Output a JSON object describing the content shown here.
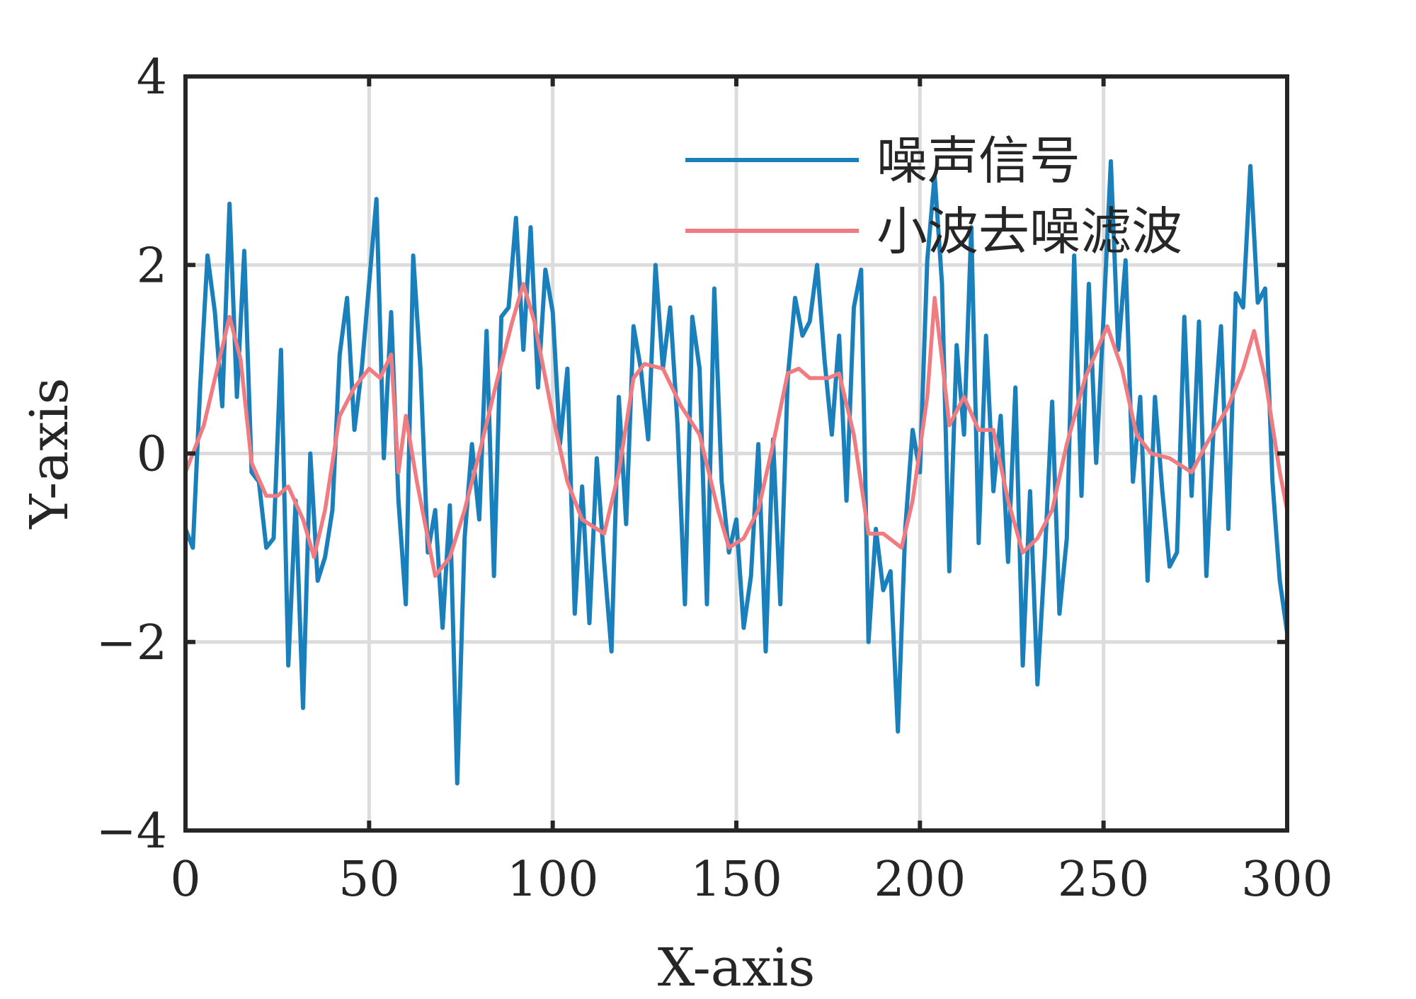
{
  "chart_data": {
    "type": "line",
    "title": "",
    "xlabel": "X-axis",
    "ylabel": "Y-axis",
    "xlim": [
      0,
      300
    ],
    "ylim": [
      -4,
      4
    ],
    "xticks": [
      0,
      50,
      100,
      150,
      200,
      250,
      300
    ],
    "yticks": [
      -4,
      -2,
      0,
      2,
      4
    ],
    "xtick_labels": [
      "0",
      "50",
      "100",
      "150",
      "200",
      "250",
      "300"
    ],
    "ytick_labels": [
      "−4",
      "−2",
      "0",
      "2",
      "4"
    ],
    "grid": true,
    "legend_position": "top-right",
    "series": [
      {
        "name": "噪声信号",
        "color": "#1a80bb",
        "x": [
          0,
          2,
          4,
          6,
          8,
          10,
          12,
          14,
          16,
          18,
          20,
          22,
          24,
          26,
          28,
          30,
          32,
          34,
          36,
          38,
          40,
          42,
          44,
          46,
          48,
          50,
          52,
          54,
          56,
          58,
          60,
          62,
          64,
          66,
          68,
          70,
          72,
          74,
          76,
          78,
          80,
          82,
          84,
          86,
          88,
          90,
          92,
          94,
          96,
          98,
          100,
          102,
          104,
          106,
          108,
          110,
          112,
          114,
          116,
          118,
          120,
          122,
          124,
          126,
          128,
          130,
          132,
          134,
          136,
          138,
          140,
          142,
          144,
          146,
          148,
          150,
          152,
          154,
          156,
          158,
          160,
          162,
          164,
          166,
          168,
          170,
          172,
          174,
          176,
          178,
          180,
          182,
          184,
          186,
          188,
          190,
          192,
          194,
          196,
          198,
          200,
          202,
          204,
          206,
          208,
          210,
          212,
          214,
          216,
          218,
          220,
          222,
          224,
          226,
          228,
          230,
          232,
          234,
          236,
          238,
          240,
          242,
          244,
          246,
          248,
          250,
          252,
          254,
          256,
          258,
          260,
          262,
          264,
          266,
          268,
          270,
          272,
          274,
          276,
          278,
          280,
          282,
          284,
          286,
          288,
          290,
          292,
          294,
          296,
          298,
          300
        ],
        "y": [
          -0.8,
          -1.0,
          0.7,
          2.1,
          1.5,
          0.5,
          2.65,
          0.6,
          2.15,
          -0.2,
          -0.3,
          -1.0,
          -0.9,
          1.1,
          -2.25,
          -0.5,
          -2.7,
          0.0,
          -1.35,
          -1.1,
          -0.6,
          1.05,
          1.65,
          0.25,
          0.9,
          1.8,
          2.7,
          -0.05,
          1.5,
          -0.5,
          -1.6,
          2.1,
          0.9,
          -1.05,
          -0.6,
          -1.85,
          -0.55,
          -3.5,
          -0.9,
          0.1,
          -0.7,
          1.3,
          -1.3,
          1.45,
          1.55,
          2.5,
          1.1,
          2.4,
          0.7,
          1.95,
          1.5,
          0.1,
          0.9,
          -1.7,
          -0.35,
          -1.8,
          -0.05,
          -1.15,
          -2.1,
          0.6,
          -0.75,
          1.35,
          0.9,
          0.15,
          2.0,
          0.9,
          1.55,
          0.3,
          -1.6,
          1.45,
          0.9,
          -1.6,
          1.75,
          -0.3,
          -1.05,
          -0.7,
          -1.85,
          -1.3,
          0.1,
          -2.1,
          0.15,
          -1.6,
          0.8,
          1.65,
          1.25,
          1.4,
          2.0,
          1.0,
          0.2,
          1.25,
          -0.5,
          1.55,
          1.95,
          -2.0,
          -0.8,
          -1.45,
          -1.25,
          -2.95,
          -0.8,
          0.25,
          -0.2,
          2.05,
          2.95,
          1.8,
          -1.25,
          1.15,
          0.2,
          2.4,
          -0.95,
          1.25,
          -0.4,
          0.4,
          -1.15,
          0.7,
          -2.25,
          -0.4,
          -2.45,
          -1.1,
          0.55,
          -1.7,
          -0.9,
          2.1,
          -0.45,
          1.8,
          -0.1,
          1.45,
          3.1,
          1.1,
          2.05,
          -0.3,
          0.6,
          -1.35,
          0.6,
          -0.4,
          -1.2,
          -1.05,
          1.45,
          -0.45,
          1.4,
          -1.3,
          0.3,
          1.35,
          -0.8,
          1.7,
          1.55,
          3.05,
          1.6,
          1.75,
          -0.3,
          -1.35,
          -1.9
        ]
      },
      {
        "name": "小波去噪滤波",
        "color": "#f07c82",
        "x": [
          0,
          5,
          12,
          15,
          18,
          22,
          25,
          28,
          32,
          35,
          38,
          42,
          46,
          50,
          53,
          56,
          58,
          60,
          63,
          66,
          68,
          72,
          76,
          80,
          85,
          89,
          92,
          95,
          100,
          104,
          108,
          114,
          118,
          122,
          125,
          130,
          135,
          140,
          145,
          148,
          152,
          156,
          160,
          164,
          167,
          170,
          175,
          178,
          182,
          186,
          190,
          195,
          198,
          202,
          204,
          206,
          208,
          212,
          216,
          220,
          224,
          228,
          232,
          236,
          240,
          245,
          251,
          255,
          259,
          263,
          268,
          274,
          278,
          284,
          288,
          291,
          294,
          298,
          300
        ],
        "y": [
          -0.2,
          0.3,
          1.45,
          1.0,
          -0.1,
          -0.45,
          -0.45,
          -0.35,
          -0.7,
          -1.1,
          -0.6,
          0.4,
          0.7,
          0.9,
          0.8,
          1.05,
          -0.2,
          0.4,
          -0.3,
          -0.9,
          -1.3,
          -1.1,
          -0.6,
          0.0,
          0.8,
          1.4,
          1.8,
          1.4,
          0.4,
          -0.3,
          -0.7,
          -0.85,
          -0.2,
          0.8,
          0.95,
          0.9,
          0.5,
          0.2,
          -0.6,
          -1.0,
          -0.9,
          -0.6,
          0.1,
          0.85,
          0.9,
          0.8,
          0.8,
          0.85,
          0.2,
          -0.85,
          -0.85,
          -1.0,
          -0.5,
          0.6,
          1.65,
          1.0,
          0.3,
          0.6,
          0.25,
          0.25,
          -0.5,
          -1.05,
          -0.9,
          -0.6,
          0.1,
          0.8,
          1.35,
          0.9,
          0.2,
          0.0,
          -0.05,
          -0.2,
          0.1,
          0.5,
          0.9,
          1.3,
          0.8,
          -0.2,
          -0.6
        ]
      }
    ]
  }
}
